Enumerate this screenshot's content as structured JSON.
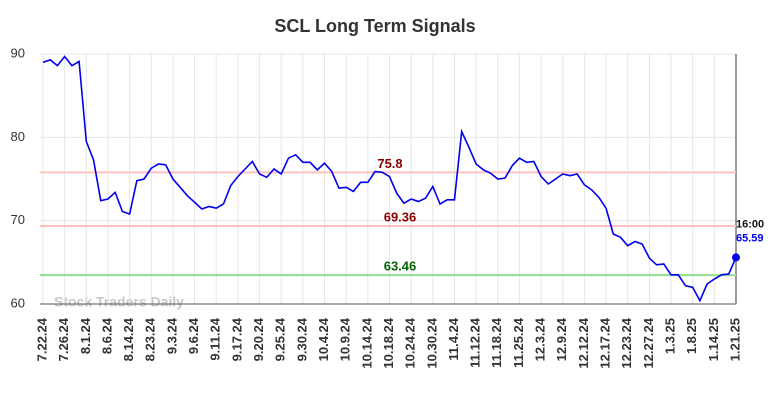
{
  "chart_data": {
    "type": "line",
    "title": "SCL Long Term Signals",
    "categories": [
      "7.22.24",
      null,
      null,
      "7.26.24",
      null,
      null,
      "8.1.24",
      null,
      null,
      "8.6.24",
      null,
      null,
      "8.14.24",
      null,
      null,
      "8.23.24",
      null,
      null,
      "9.3.24",
      null,
      null,
      "9.6.24",
      null,
      null,
      "9.11.24",
      null,
      null,
      "9.17.24",
      null,
      null,
      "9.20.24",
      null,
      null,
      "9.25.24",
      null,
      null,
      "9.30.24",
      null,
      null,
      "10.4.24",
      null,
      null,
      "10.9.24",
      null,
      null,
      "10.14.24",
      null,
      null,
      "10.18.24",
      null,
      null,
      "10.24.24",
      null,
      null,
      "10.30.24",
      null,
      null,
      "11.4.24",
      null,
      null,
      "11.12.24",
      null,
      null,
      "11.18.24",
      null,
      null,
      "11.25.24",
      null,
      null,
      "12.3.24",
      null,
      null,
      "12.9.24",
      null,
      null,
      "12.12.24",
      null,
      null,
      "12.17.24",
      null,
      null,
      "12.23.24",
      null,
      null,
      "12.27.24",
      null,
      null,
      "1.3.25",
      null,
      null,
      "1.8.25",
      null,
      null,
      "1.14.25",
      null,
      null,
      "1.21.25"
    ],
    "series": [
      {
        "name": "SCL",
        "color": "#0000ee",
        "values": [
          89,
          89.3,
          88.6,
          89.7,
          88.6,
          89.1,
          79.5,
          77.3,
          72.4,
          72.6,
          73.4,
          71.1,
          70.8,
          74.8,
          75.0,
          76.3,
          76.8,
          76.7,
          75.0,
          74.0,
          73.0,
          72.2,
          71.4,
          71.7,
          71.5,
          72.0,
          74.2,
          75.3,
          76.2,
          77.1,
          75.6,
          75.2,
          76.2,
          75.6,
          77.5,
          77.9,
          77.0,
          77.0,
          76.1,
          76.9,
          75.9,
          73.9,
          74.0,
          73.5,
          74.6,
          74.6,
          75.9,
          75.8,
          75.3,
          73.3,
          72.1,
          72.6,
          72.3,
          72.7,
          74.1,
          72.0,
          72.5,
          72.5,
          80.7,
          78.8,
          76.8,
          76.1,
          75.7,
          75.0,
          75.1,
          76.6,
          77.5,
          77.0,
          77.1,
          75.3,
          74.4,
          75.0,
          75.6,
          75.4,
          75.6,
          74.3,
          73.7,
          72.8,
          71.5,
          68.4,
          68.0,
          67.0,
          67.5,
          67.2,
          65.5,
          64.7,
          64.8,
          63.5,
          63.5,
          62.2,
          62.0,
          60.4,
          62.4,
          63.0,
          63.5,
          63.6,
          65.59
        ]
      }
    ],
    "ylim": [
      60,
      90
    ],
    "yticks": [
      60,
      70,
      80,
      90
    ],
    "grid": true,
    "hlines": [
      {
        "value": 75.8,
        "color": "#ffc0c0",
        "label_color": "#8b0000"
      },
      {
        "value": 69.36,
        "color": "#ffc0c0",
        "label_color": "#8b0000"
      },
      {
        "value": 63.46,
        "color": "#90e090",
        "label_color": "#006400"
      }
    ],
    "last_time": "16:00",
    "watermark": "Stock Traders Daily"
  }
}
